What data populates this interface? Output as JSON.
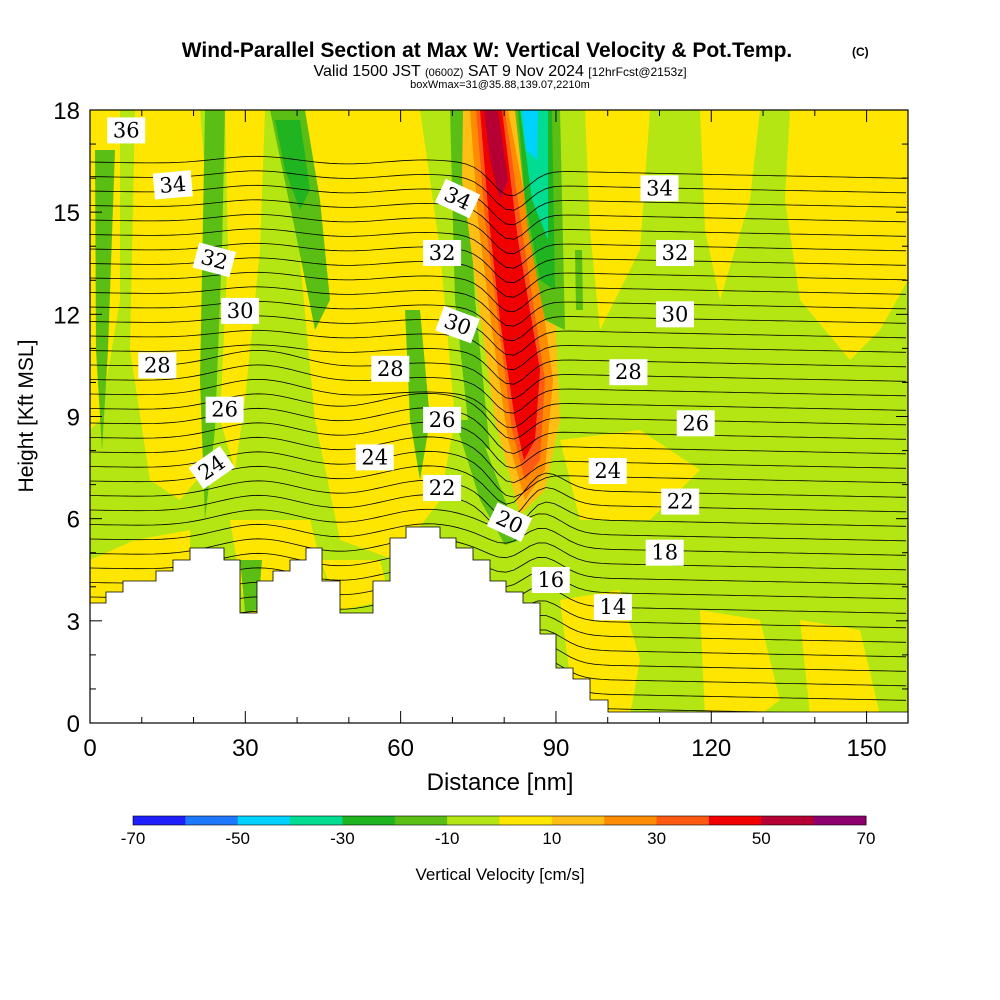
{
  "chart_data": {
    "type": "heatmap",
    "title": "Wind-Parallel Section at Max W: Vertical Velocity & Pot.Temp.",
    "title_mark": "(C)",
    "subtitle": {
      "valid_prefix": "Valid 1500 JST",
      "utc": "(0600Z)",
      "date": "SAT 9 Nov 2024",
      "fcst": "[12hrFcst@2153z]"
    },
    "subtitle2": "boxWmax=31@35.88,139.07,2210m",
    "xlabel": "Distance [nm]",
    "ylabel": "Height [Kft MSL]",
    "xlim": [
      0,
      158
    ],
    "ylim": [
      0,
      18
    ],
    "x_ticks": [
      0,
      30,
      60,
      90,
      120,
      150
    ],
    "y_ticks": [
      0,
      3,
      6,
      9,
      12,
      15,
      18
    ],
    "colorbar": {
      "label": "Vertical Velocity [cm/s]",
      "ticks": [
        -70,
        -50,
        -30,
        -10,
        10,
        30,
        50,
        70
      ],
      "colors": [
        "#1e1eff",
        "#1e78ff",
        "#00d2ff",
        "#00dc91",
        "#20b420",
        "#5abe14",
        "#b4e614",
        "#ffe600",
        "#ffbe14",
        "#ff8c00",
        "#ff5a14",
        "#f00000",
        "#b40032",
        "#8c006e"
      ]
    },
    "background_color": "#b4e614",
    "theta_contours": [
      14,
      16,
      18,
      20,
      22,
      24,
      26,
      28,
      30,
      32,
      34,
      36
    ],
    "contour_labels": [
      {
        "text": "36",
        "x": 7,
        "y": 17.4,
        "angle": 0
      },
      {
        "text": "34",
        "x": 16,
        "y": 15.8,
        "angle": -5
      },
      {
        "text": "32",
        "x": 24,
        "y": 13.6,
        "angle": 15
      },
      {
        "text": "30",
        "x": 29,
        "y": 12.1,
        "angle": 0
      },
      {
        "text": "28",
        "x": 13,
        "y": 10.5,
        "angle": 0
      },
      {
        "text": "26",
        "x": 26,
        "y": 9.2,
        "angle": 0
      },
      {
        "text": "24",
        "x": 23.5,
        "y": 7.5,
        "angle": -35
      },
      {
        "text": "24",
        "x": 55,
        "y": 7.8,
        "angle": 0
      },
      {
        "text": "22",
        "x": 68,
        "y": 6.9,
        "angle": 0
      },
      {
        "text": "26",
        "x": 68,
        "y": 8.9,
        "angle": 0
      },
      {
        "text": "28",
        "x": 58,
        "y": 10.4,
        "angle": 0
      },
      {
        "text": "30",
        "x": 71,
        "y": 11.7,
        "angle": 20
      },
      {
        "text": "32",
        "x": 68,
        "y": 13.8,
        "angle": 0
      },
      {
        "text": "34",
        "x": 71,
        "y": 15.4,
        "angle": 25
      },
      {
        "text": "20",
        "x": 81,
        "y": 5.9,
        "angle": 25
      },
      {
        "text": "16",
        "x": 89,
        "y": 4.2,
        "angle": 0
      },
      {
        "text": "14",
        "x": 101,
        "y": 3.4,
        "angle": 0
      },
      {
        "text": "18",
        "x": 111,
        "y": 5.0,
        "angle": 0
      },
      {
        "text": "22",
        "x": 114,
        "y": 6.5,
        "angle": 0
      },
      {
        "text": "24",
        "x": 100,
        "y": 7.4,
        "angle": 0
      },
      {
        "text": "26",
        "x": 117,
        "y": 8.8,
        "angle": 0
      },
      {
        "text": "28",
        "x": 104,
        "y": 10.3,
        "angle": 0
      },
      {
        "text": "30",
        "x": 113,
        "y": 12.0,
        "angle": 0
      },
      {
        "text": "32",
        "x": 113,
        "y": 13.8,
        "angle": 0
      },
      {
        "text": "34",
        "x": 110,
        "y": 15.7,
        "angle": 0
      }
    ]
  }
}
